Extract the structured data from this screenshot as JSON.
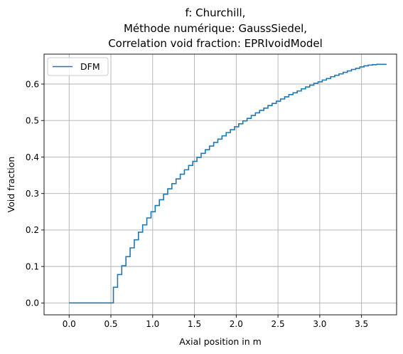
{
  "chart_data": {
    "type": "line",
    "title_lines": [
      "f: Churchill,",
      "Méthode numérique: GaussSiedel,",
      "Correlation void fraction: EPRIvoidModel"
    ],
    "xlabel": "Axial position in m",
    "ylabel": "Void fraction",
    "xlim": [
      -0.3,
      3.92
    ],
    "ylim": [
      -0.0325,
      0.682
    ],
    "xticks": [
      0.0,
      0.5,
      1.0,
      1.5,
      2.0,
      2.5,
      3.0,
      3.5
    ],
    "xtick_labels": [
      "0.0",
      "0.5",
      "1.0",
      "1.5",
      "2.0",
      "2.5",
      "3.0",
      "3.5"
    ],
    "yticks": [
      0.0,
      0.1,
      0.2,
      0.3,
      0.4,
      0.5,
      0.6
    ],
    "ytick_labels": [
      "0.0",
      "0.1",
      "0.2",
      "0.3",
      "0.4",
      "0.5",
      "0.6"
    ],
    "grid": true,
    "legend_position": "upper-left",
    "drawstyle": "steps-post",
    "series": [
      {
        "name": "DFM",
        "color": "#1f77b4",
        "x": [
          0.0,
          0.05,
          0.1,
          0.15,
          0.2,
          0.25,
          0.3,
          0.35,
          0.4,
          0.45,
          0.48,
          0.53,
          0.58,
          0.63,
          0.68,
          0.73,
          0.78,
          0.83,
          0.88,
          0.93,
          0.98,
          1.03,
          1.08,
          1.13,
          1.18,
          1.23,
          1.28,
          1.33,
          1.38,
          1.43,
          1.48,
          1.53,
          1.58,
          1.63,
          1.68,
          1.73,
          1.78,
          1.83,
          1.88,
          1.93,
          1.98,
          2.03,
          2.08,
          2.13,
          2.18,
          2.23,
          2.28,
          2.33,
          2.38,
          2.43,
          2.48,
          2.53,
          2.58,
          2.63,
          2.68,
          2.73,
          2.78,
          2.83,
          2.88,
          2.93,
          2.98,
          3.03,
          3.08,
          3.13,
          3.18,
          3.23,
          3.28,
          3.33,
          3.38,
          3.43,
          3.48,
          3.53,
          3.58,
          3.63,
          3.68,
          3.73,
          3.8
        ],
        "y": [
          0.0,
          0.0,
          0.0,
          0.0,
          0.0,
          0.0,
          0.0,
          0.0,
          0.0,
          0.0,
          0.0,
          0.043,
          0.078,
          0.102,
          0.127,
          0.151,
          0.173,
          0.194,
          0.214,
          0.233,
          0.25,
          0.267,
          0.283,
          0.298,
          0.313,
          0.327,
          0.34,
          0.353,
          0.365,
          0.377,
          0.388,
          0.399,
          0.41,
          0.42,
          0.43,
          0.44,
          0.449,
          0.458,
          0.467,
          0.475,
          0.483,
          0.491,
          0.499,
          0.506,
          0.514,
          0.521,
          0.528,
          0.534,
          0.541,
          0.547,
          0.553,
          0.559,
          0.565,
          0.571,
          0.576,
          0.581,
          0.587,
          0.592,
          0.597,
          0.602,
          0.606,
          0.611,
          0.615,
          0.62,
          0.624,
          0.628,
          0.632,
          0.636,
          0.64,
          0.643,
          0.647,
          0.65,
          0.652,
          0.653,
          0.654,
          0.654,
          0.654
        ]
      }
    ]
  }
}
